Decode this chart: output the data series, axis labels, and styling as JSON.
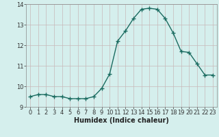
{
  "x": [
    0,
    1,
    2,
    3,
    4,
    5,
    6,
    7,
    8,
    9,
    10,
    11,
    12,
    13,
    14,
    15,
    16,
    17,
    18,
    19,
    20,
    21,
    22,
    23
  ],
  "y": [
    9.5,
    9.6,
    9.6,
    9.5,
    9.5,
    9.4,
    9.4,
    9.4,
    9.5,
    9.9,
    10.6,
    12.2,
    12.7,
    13.3,
    13.75,
    13.8,
    13.75,
    13.3,
    12.6,
    11.7,
    11.65,
    11.1,
    10.55,
    10.55
  ],
  "line_color": "#1a6b60",
  "bg_color": "#d5efed",
  "grid_color": "#c8b8b8",
  "xlabel": "Humidex (Indice chaleur)",
  "ylim": [
    9.0,
    14.0
  ],
  "xlim": [
    -0.5,
    23.5
  ],
  "yticks": [
    9,
    10,
    11,
    12,
    13,
    14
  ],
  "xticks": [
    0,
    1,
    2,
    3,
    4,
    5,
    6,
    7,
    8,
    9,
    10,
    11,
    12,
    13,
    14,
    15,
    16,
    17,
    18,
    19,
    20,
    21,
    22,
    23
  ],
  "marker": "+",
  "linewidth": 1.0,
  "markersize": 4,
  "markeredgewidth": 1.0,
  "xlabel_fontsize": 7,
  "tick_fontsize": 6
}
